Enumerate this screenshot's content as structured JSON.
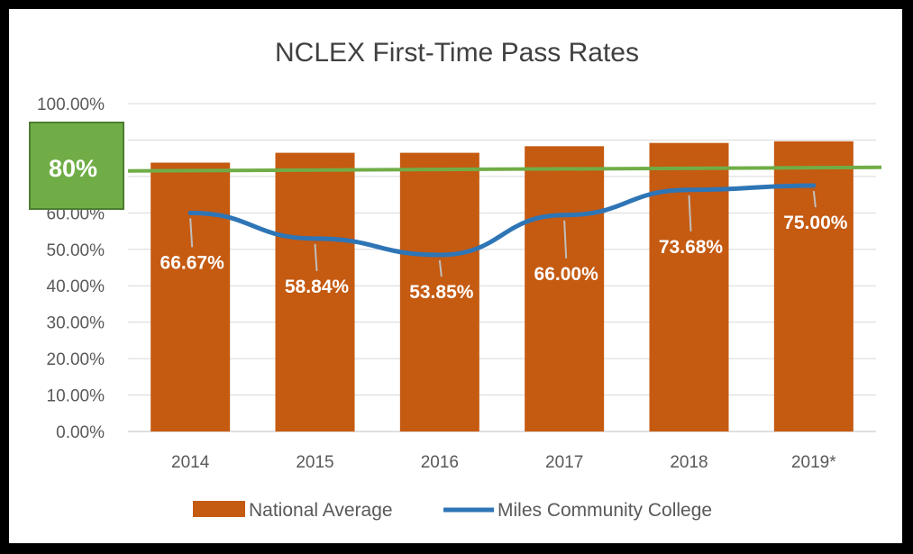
{
  "chart_data": {
    "type": "bar",
    "title": "NCLEX First-Time Pass Rates",
    "categories": [
      "2014",
      "2015",
      "2016",
      "2017",
      "2018",
      "2019*"
    ],
    "y_tick_labels": [
      "0.00%",
      "10.00%",
      "20.00%",
      "30.00%",
      "40.00%",
      "50.00%",
      "60.00%",
      "",
      "",
      "100.00%"
    ],
    "ylim": [
      0,
      100
    ],
    "grid": true,
    "legend_position": "bottom",
    "series": [
      {
        "name": "National Average",
        "type": "bar",
        "color": "#C55A11",
        "values": [
          82,
          85,
          85,
          87,
          88,
          88.5
        ]
      },
      {
        "name": "Miles Community College",
        "type": "line",
        "color": "#2E75B6",
        "values": [
          66.67,
          58.84,
          53.85,
          66.0,
          73.68,
          75.0
        ],
        "data_labels": [
          "66.67%",
          "58.84%",
          "53.85%",
          "66.00%",
          "73.68%",
          "75.00%"
        ]
      }
    ],
    "benchmark": {
      "value": 80,
      "label": "80%",
      "color": "#70AD47"
    }
  }
}
